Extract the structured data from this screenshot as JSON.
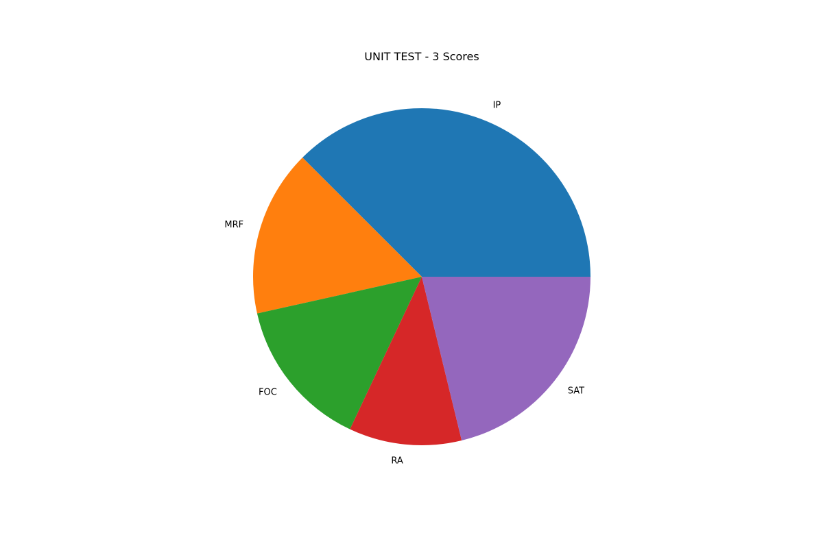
{
  "chart_data": {
    "type": "pie",
    "title": "UNIT TEST - 3 Scores",
    "start_angle_deg": 0,
    "direction": "counterclockwise",
    "slices": [
      {
        "label": "IP",
        "value": 37.5,
        "color": "#1f77b4"
      },
      {
        "label": "MRF",
        "value": 16.0,
        "color": "#ff7f0e"
      },
      {
        "label": "FOC",
        "value": 14.5,
        "color": "#2ca02c"
      },
      {
        "label": "RA",
        "value": 10.8,
        "color": "#d62728"
      },
      {
        "label": "SAT",
        "value": 21.2,
        "color": "#9467bd"
      }
    ]
  }
}
